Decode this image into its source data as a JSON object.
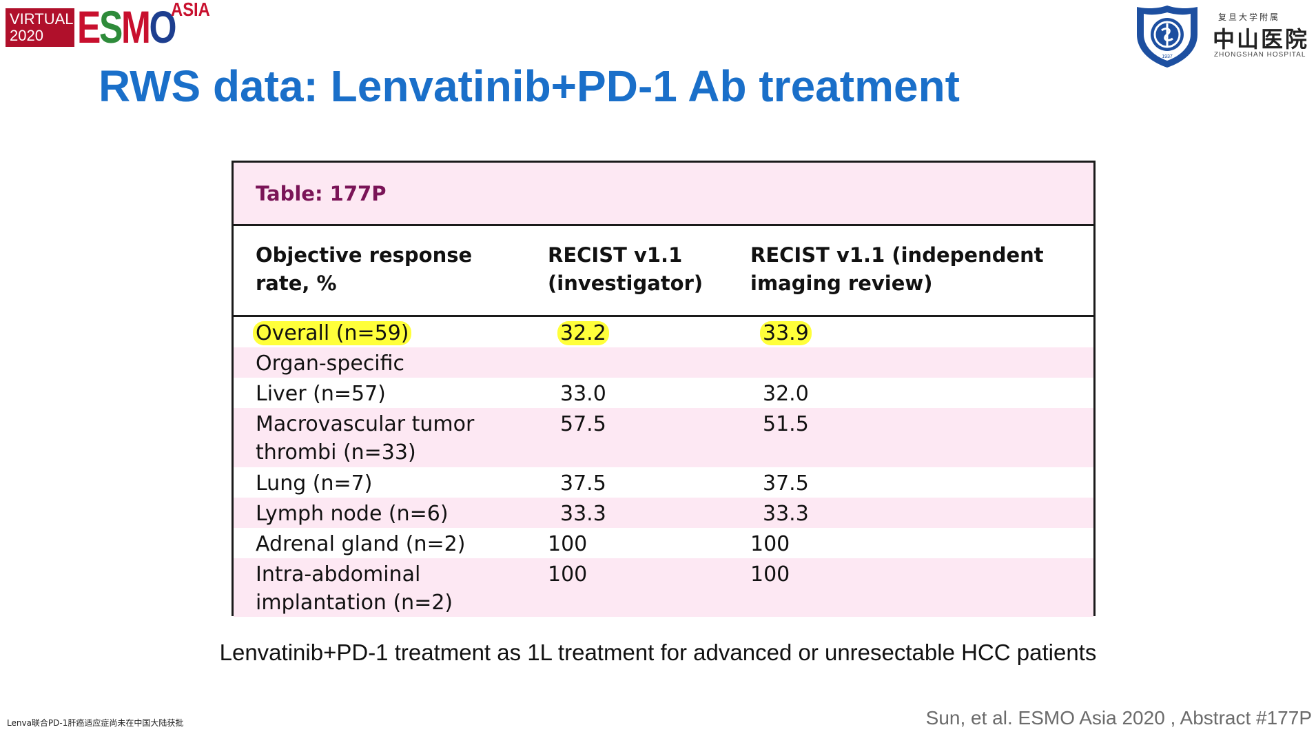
{
  "logos": {
    "conference": {
      "line1": "VIRTUAL",
      "line2": "2020",
      "letters": [
        "E",
        "S",
        "M",
        "O"
      ],
      "suffix": "ASIA"
    },
    "hospital": {
      "cn_top": "复旦大学附属",
      "cn_name": "中山医院",
      "en_name": "ZHONGSHAN HOSPITAL",
      "year": "1937"
    }
  },
  "title": "RWS data: Lenvatinib+PD-1 Ab treatment",
  "table": {
    "caption": "Table: 177P",
    "headers": {
      "col1": [
        "Objective response",
        "rate, %"
      ],
      "col2": [
        "RECIST v1.1",
        "(investigator)"
      ],
      "col3": [
        "RECIST v1.1 (independent",
        "imaging review)"
      ]
    },
    "rows": [
      {
        "label": [
          "Overall (n=59)"
        ],
        "investigator": "32.2",
        "independent": "33.9"
      },
      {
        "label": [
          "Organ-specific"
        ],
        "investigator": "",
        "independent": ""
      },
      {
        "label": [
          "Liver (n=57)"
        ],
        "investigator": "33.0",
        "independent": "32.0"
      },
      {
        "label": [
          "Macrovascular tumor",
          "thrombi (n=33)"
        ],
        "investigator": "57.5",
        "independent": "51.5"
      },
      {
        "label": [
          "Lung (n=7)"
        ],
        "investigator": "37.5",
        "independent": "37.5"
      },
      {
        "label": [
          "Lymph node (n=6)"
        ],
        "investigator": "33.3",
        "independent": "33.3"
      },
      {
        "label": [
          "Adrenal gland (n=2)"
        ],
        "investigator": "100",
        "independent": "100"
      },
      {
        "label": [
          "Intra-abdominal",
          "implantation (n=2)"
        ],
        "investigator": "100",
        "independent": "100"
      }
    ]
  },
  "subtitle": "Lenvatinib+PD-1 treatment as 1L treatment for advanced or unresectable HCC patients",
  "footnote": "Lenva联合PD-1肝癌适应症尚未在中国大陆获批",
  "citation": "Sun, et al. ESMO Asia 2020 , Abstract #177P",
  "colors": {
    "title": "#1a6fc9",
    "caption": "#7a1457",
    "row_tint": "#fde8f3",
    "highlight": "#ffff3a",
    "esmo": [
      "#c8102e",
      "#2e8b3a",
      "#c8102e",
      "#1d3e8f"
    ]
  }
}
